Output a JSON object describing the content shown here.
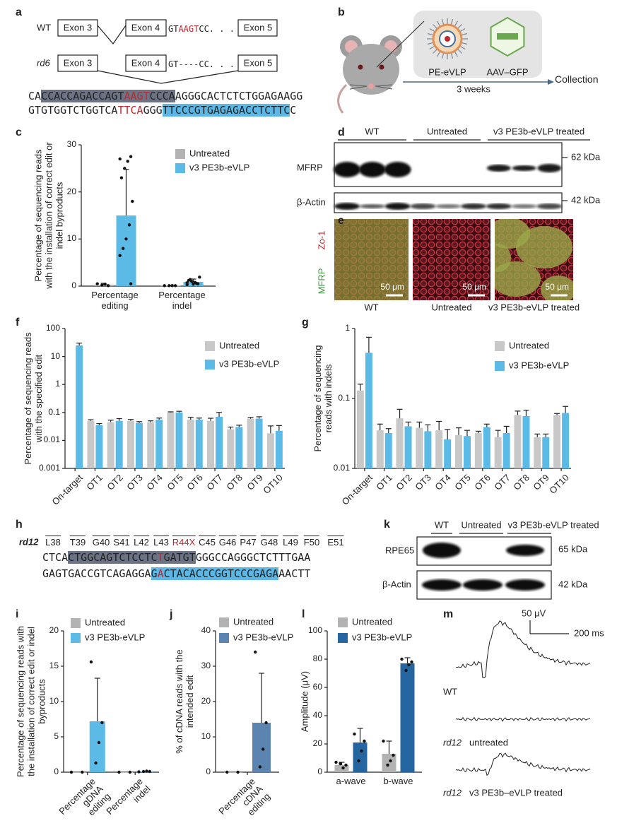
{
  "panel_a": {
    "label": "a",
    "wt": {
      "name": "WT",
      "exon3": "Exon 3",
      "exon4": "Exon 4",
      "seq_start": "GT",
      "seq_mut": "AAGT",
      "seq_end": "CC. . .",
      "exon5": "Exon 5"
    },
    "rd6": {
      "name": "rd6",
      "exon3": "Exon 3",
      "exon4": "Exon 4",
      "seq_start": "GT",
      "seq_mut": "----",
      "seq_end": "CC. . .",
      "exon5": "Exon 5"
    },
    "top_strand": [
      "CA",
      "CCACCAGACCAGT",
      "AAGT",
      "CCCA",
      "AGGGCACTCTCTGGAGAAGG"
    ],
    "bottom_strand": [
      "GTGTGGTCTGGTCA",
      "TTCA",
      "GGG",
      "TTCCCGTGAGAGACCTCTTC",
      "C"
    ]
  },
  "panel_b": {
    "label": "b",
    "vector1": "PE-eVLP",
    "vector2": "AAV–GFP",
    "duration": "3 weeks",
    "endpoint": "Collection"
  },
  "panel_d": {
    "label": "d",
    "groups": [
      "WT",
      "Untreated",
      "v3 PE3b-eVLP treated"
    ],
    "rows": [
      "MFRP",
      "β-Actin"
    ],
    "markers": [
      "62 kDa",
      "42 kDa"
    ]
  },
  "panel_e": {
    "label": "e",
    "stain1": "Zo-1",
    "stain2": "MFRP",
    "scale_bars": [
      "50 μm",
      "50 μm",
      "50 μm"
    ],
    "groups": [
      "WT",
      "Untreated",
      "v3 PE3b-eVLP treated"
    ]
  },
  "panel_h": {
    "label": "h",
    "strain": "rd12",
    "residues": [
      "L38",
      "T39",
      "G40",
      "S41",
      "L42",
      "L43",
      "R44X",
      "C45",
      "G46",
      "P47",
      "G48",
      "L49",
      "F50",
      "E51"
    ],
    "top_strand": [
      "CTCA",
      "CTGGCAGTCTCCTC",
      "T",
      "GATGT",
      "GGGCCAGGGCTCTTTGAA"
    ],
    "bottom_strand": [
      "GAGTGACCGTCAGAGGA",
      "G",
      "A",
      "CTACACCCGGTCCCGAGA",
      "AACTT"
    ]
  },
  "panel_k": {
    "label": "k",
    "groups": [
      "WT",
      "Untreated",
      "v3 PE3b-eVLP treated"
    ],
    "rows": [
      "RPE65",
      "β-Actin"
    ],
    "markers": [
      "65 kDa",
      "42 kDa"
    ]
  },
  "panel_m": {
    "label": "m",
    "scale_voltage": "50 μV",
    "scale_time": "200 ms",
    "traces": [
      {
        "condition": "WT"
      },
      {
        "strain": "rd12",
        "condition": "untreated"
      },
      {
        "strain": "rd12",
        "condition": "v3 PE3b–eVLP treated"
      }
    ]
  },
  "chart_data": [
    {
      "label": "c",
      "type": "bar",
      "y_label": "Percentage of sequencing reads with the installation of correct edit or indel byproducts",
      "categories": [
        "Percentage editing",
        "Percentage indel"
      ],
      "series": [
        {
          "name": "Untreated",
          "color": "#b3b3b3",
          "values": [
            0.3,
            0.1
          ],
          "errors": [
            0.3,
            0.05
          ],
          "points": [
            [
              0.5,
              0.1,
              0.4,
              0.2
            ],
            [
              0.1,
              0.1,
              0.1,
              0.1
            ]
          ]
        },
        {
          "name": "v3 PE3b-eVLP",
          "color": "#5bbbe6",
          "values": [
            15,
            0.9
          ],
          "errors": [
            9.8,
            0.6
          ],
          "points": [
            [
              27,
              27.5,
              26.5,
              25,
              23,
              18,
              13,
              10,
              8,
              6.5,
              0.5
            ],
            [
              0.3,
              0.5,
              0.8,
              1,
              1.2,
              1.9,
              0.6,
              0.4,
              1.4,
              0.7
            ]
          ]
        }
      ],
      "ylim": [
        0,
        30
      ],
      "yticks": [
        0,
        10,
        20,
        30
      ],
      "log_scale": false,
      "legend": "upper right"
    },
    {
      "label": "f",
      "type": "bar",
      "y_label": "Percentage of sequencing reads with the specified edit",
      "categories": [
        "On-target",
        "OT1",
        "OT2",
        "OT3",
        "OT4",
        "OT5",
        "OT6",
        "OT7",
        "OT8",
        "OT9",
        "OT10"
      ],
      "series": [
        {
          "name": "Untreated",
          "color": "#c8c8c8",
          "values": [
            null,
            0.05,
            0.045,
            0.05,
            0.045,
            0.1,
            0.055,
            0.05,
            0.025,
            0.06,
            0.018
          ],
          "errors": [
            null,
            0.005,
            0.008,
            0.006,
            0.005,
            0.005,
            0.012,
            0.012,
            0.005,
            0.006,
            0.015
          ]
        },
        {
          "name": "v3 PE3b-eVLP",
          "color": "#5bbbe6",
          "values": [
            25,
            0.035,
            0.05,
            0.042,
            0.055,
            0.1,
            0.055,
            0.07,
            0.03,
            0.06,
            0.022
          ],
          "errors": [
            5,
            0.005,
            0.01,
            0.005,
            0.008,
            0.01,
            0.008,
            0.03,
            0.005,
            0.01,
            0.012
          ]
        }
      ],
      "ylim": [
        0.001,
        100
      ],
      "yticks": [
        0.001,
        0.01,
        0.1,
        1,
        10,
        100
      ],
      "log_scale": true,
      "legend": "upper right"
    },
    {
      "label": "g",
      "type": "bar",
      "y_label": "Percentage of sequencing reads with indels",
      "categories": [
        "On-target",
        "OT1",
        "OT2",
        "OT3",
        "OT4",
        "OT5",
        "OT6",
        "OT7",
        "OT8",
        "OT9",
        "OT10"
      ],
      "series": [
        {
          "name": "Untreated",
          "color": "#c8c8c8",
          "values": [
            0.13,
            0.035,
            0.052,
            0.038,
            0.035,
            0.03,
            0.032,
            0.028,
            0.058,
            0.028,
            0.058
          ],
          "errors": [
            0.03,
            0.008,
            0.018,
            0.008,
            0.012,
            0.008,
            0.002,
            0.007,
            0.008,
            0.003,
            0.003
          ]
        },
        {
          "name": "v3 PE3b-eVLP",
          "color": "#5bbbe6",
          "values": [
            0.45,
            0.032,
            0.04,
            0.034,
            0.026,
            0.029,
            0.039,
            0.032,
            0.056,
            0.028,
            0.062
          ],
          "errors": [
            0.3,
            0.005,
            0.006,
            0.008,
            0.01,
            0.006,
            0.004,
            0.008,
            0.012,
            0.003,
            0.015
          ]
        }
      ],
      "ylim": [
        0.01,
        1
      ],
      "yticks": [
        0.01,
        0.1,
        1
      ],
      "log_scale": true,
      "legend": "upper right"
    },
    {
      "label": "i",
      "type": "bar",
      "y_label": "Percentage of sequencing reads with the installation of correct edit or indel byproducts",
      "categories": [
        "Percentage gDNA editing",
        "Percentage indel"
      ],
      "series": [
        {
          "name": "Untreated",
          "color": "#b3b3b3",
          "values": [
            0,
            0
          ],
          "points": [
            [
              0,
              0
            ],
            [
              0,
              0
            ]
          ]
        },
        {
          "name": "v3 PE3b-eVLP",
          "color": "#5bbbe6",
          "values": [
            7.2,
            0.1
          ],
          "errors": [
            6.1,
            null
          ],
          "points": [
            [
              15.6,
              7,
              4.2,
              1.3
            ],
            [
              0.05,
              0.1,
              0.15,
              0.1
            ]
          ]
        }
      ],
      "ylim": [
        0,
        20
      ],
      "yticks": [
        0,
        5,
        10,
        15,
        20
      ],
      "log_scale": false,
      "legend": "upper left"
    },
    {
      "label": "j",
      "type": "bar",
      "y_label": "% of cDNA reads with the intended edit",
      "categories": [
        "Percentage cDNA editing"
      ],
      "series": [
        {
          "name": "Untreated",
          "color": "#b3b3b3",
          "values": [
            0
          ],
          "points": [
            [
              0,
              0
            ]
          ]
        },
        {
          "name": "v3 PE3b-eVLP",
          "color": "#5b84b1",
          "values": [
            14
          ],
          "errors": [
            14
          ],
          "points": [
            [
              34,
              14,
              6.5,
              1.5
            ]
          ]
        }
      ],
      "ylim": [
        0,
        40
      ],
      "yticks": [
        0,
        10,
        20,
        30,
        40
      ],
      "log_scale": false,
      "legend": "upper left"
    },
    {
      "label": "l",
      "type": "bar",
      "y_label": "Amplitude (μV)",
      "categories": [
        "a-wave",
        "b-wave"
      ],
      "series": [
        {
          "name": "Untreated",
          "color": "#b3b3b3",
          "values": [
            5,
            13
          ],
          "errors": [
            2,
            9
          ],
          "points": [
            [
              7,
              5,
              3,
              6
            ],
            [
              22,
              12,
              8,
              5
            ]
          ]
        },
        {
          "name": "v3 PE3b-eVLP",
          "color": "#2566a0",
          "values": [
            21,
            77
          ],
          "errors": [
            10,
            4
          ],
          "points": [
            [
              27,
              22,
              15,
              8
            ],
            [
              80,
              78,
              76,
              72
            ]
          ]
        }
      ],
      "ylim": [
        0,
        100
      ],
      "yticks": [
        0,
        20,
        40,
        60,
        80,
        100
      ],
      "log_scale": false,
      "legend": "upper left"
    }
  ]
}
